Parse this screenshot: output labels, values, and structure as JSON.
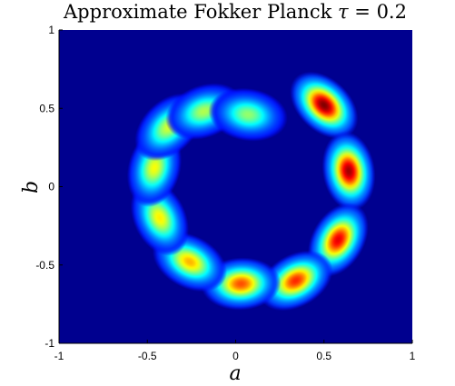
{
  "chart_data": {
    "type": "heatmap",
    "title_prefix": "Approximate Fokker Planck ",
    "title_symbol": "τ",
    "title_suffix": " = 0.2",
    "xlabel": "a",
    "ylabel": "b",
    "xlim": [
      -1,
      1
    ],
    "ylim": [
      -1,
      1
    ],
    "xticks": [
      "-1",
      "-0.5",
      "0",
      "0.5",
      "1"
    ],
    "yticks": [
      "1",
      "0.5",
      "0",
      "-0.5",
      "-1"
    ],
    "colormap": "jet",
    "background_color": "#00008f",
    "grid": false,
    "legend": "none",
    "blobs": [
      {
        "a": 0.5,
        "b": 0.52,
        "peak": 1.0
      },
      {
        "a": 0.64,
        "b": 0.1,
        "peak": 0.97
      },
      {
        "a": 0.58,
        "b": -0.34,
        "peak": 0.9
      },
      {
        "a": 0.34,
        "b": -0.6,
        "peak": 0.84
      },
      {
        "a": 0.03,
        "b": -0.62,
        "peak": 0.8
      },
      {
        "a": -0.26,
        "b": -0.48,
        "peak": 0.7
      },
      {
        "a": -0.43,
        "b": -0.2,
        "peak": 0.64
      },
      {
        "a": -0.46,
        "b": 0.12,
        "peak": 0.62
      },
      {
        "a": -0.38,
        "b": 0.38,
        "peak": 0.58
      },
      {
        "a": -0.18,
        "b": 0.48,
        "peak": 0.55
      },
      {
        "a": 0.07,
        "b": 0.46,
        "peak": 0.52
      }
    ]
  }
}
